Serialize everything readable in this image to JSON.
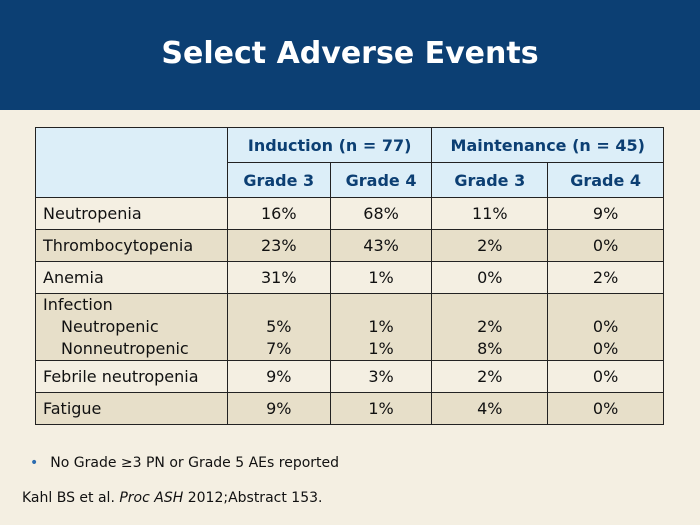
{
  "title": "Select Adverse Events",
  "table": {
    "group_headers": [
      "Induction (n = 77)",
      "Maintenance (n = 45)"
    ],
    "sub_headers": [
      "Grade 3",
      "Grade 4",
      "Grade 3",
      "Grade 4"
    ],
    "rows": [
      {
        "label": "Neutropenia",
        "values": [
          "16%",
          "68%",
          "11%",
          "9%"
        ]
      },
      {
        "label": "Thrombocytopenia",
        "values": [
          "23%",
          "43%",
          "2%",
          "0%"
        ]
      },
      {
        "label": "Anemia",
        "values": [
          "31%",
          "1%",
          "0%",
          "2%"
        ]
      },
      {
        "label": "Infection",
        "subrows": [
          {
            "label": "Neutropenic",
            "values": [
              "5%",
              "1%",
              "2%",
              "0%"
            ]
          },
          {
            "label": "Nonneutropenic",
            "values": [
              "7%",
              "1%",
              "8%",
              "0%"
            ]
          }
        ]
      },
      {
        "label": "Febrile neutropenia",
        "values": [
          "9%",
          "3%",
          "2%",
          "0%"
        ]
      },
      {
        "label": "Fatigue",
        "values": [
          "9%",
          "1%",
          "4%",
          "0%"
        ]
      }
    ]
  },
  "bullet": "No Grade ≥3 PN or Grade 5 AEs reported",
  "citation": {
    "authors": "Kahl BS et al.",
    "journal": "Proc ASH",
    "rest": "2012;Abstract 153."
  },
  "colors": {
    "header_bg": "#0c3f73",
    "table_header_bg": "#dceef8",
    "row_alt_bg": "#e7dfc9",
    "page_bg": "#f4efe2"
  }
}
